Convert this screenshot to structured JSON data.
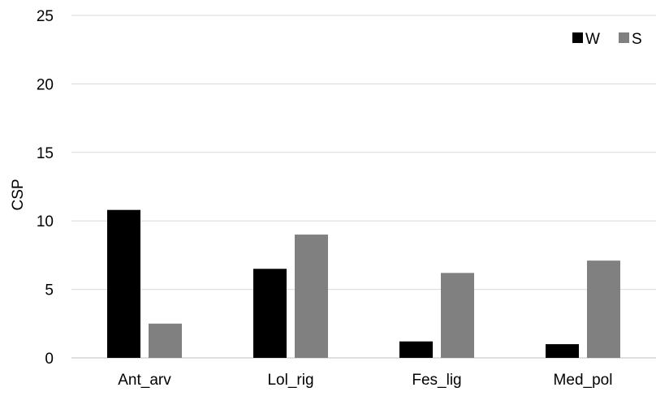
{
  "chart_data": {
    "type": "bar",
    "title": "",
    "xlabel": "",
    "ylabel": "CSP",
    "ylim": [
      0,
      25
    ],
    "yticks": [
      0,
      5,
      10,
      15,
      20,
      25
    ],
    "grid": true,
    "legend_position": "top-right",
    "categories": [
      "Ant_arv",
      "Lol_rig",
      "Fes_lig",
      "Med_pol"
    ],
    "series": [
      {
        "name": "W",
        "color": "#000000",
        "values": [
          10.8,
          6.5,
          1.2,
          1.0
        ]
      },
      {
        "name": "S",
        "color": "#808080",
        "values": [
          2.5,
          9.0,
          6.2,
          7.1
        ]
      }
    ]
  }
}
